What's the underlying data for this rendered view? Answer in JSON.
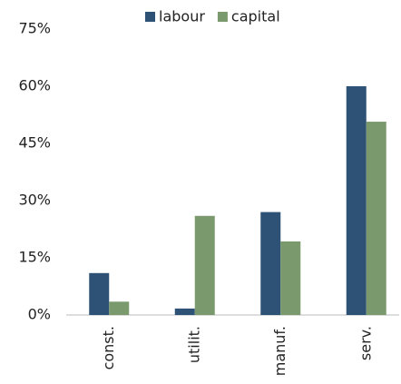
{
  "chart_data": {
    "type": "bar",
    "categories": [
      "const.",
      "utilit.",
      "manuf.",
      "serv."
    ],
    "series": [
      {
        "name": "labour",
        "color": "#2e5276",
        "values": [
          11,
          1.7,
          27,
          60
        ]
      },
      {
        "name": "capital",
        "color": "#7a9a6e",
        "values": [
          3.5,
          26,
          19.3,
          50.7
        ]
      }
    ],
    "ylim": [
      0,
      75
    ],
    "yticks": [
      {
        "value": 0,
        "label": "0%"
      },
      {
        "value": 15,
        "label": "15%"
      },
      {
        "value": 30,
        "label": "30%"
      },
      {
        "value": 45,
        "label": "45%"
      },
      {
        "value": 60,
        "label": "60%"
      },
      {
        "value": 75,
        "label": "75%"
      }
    ],
    "legend": "top",
    "grid": false
  }
}
